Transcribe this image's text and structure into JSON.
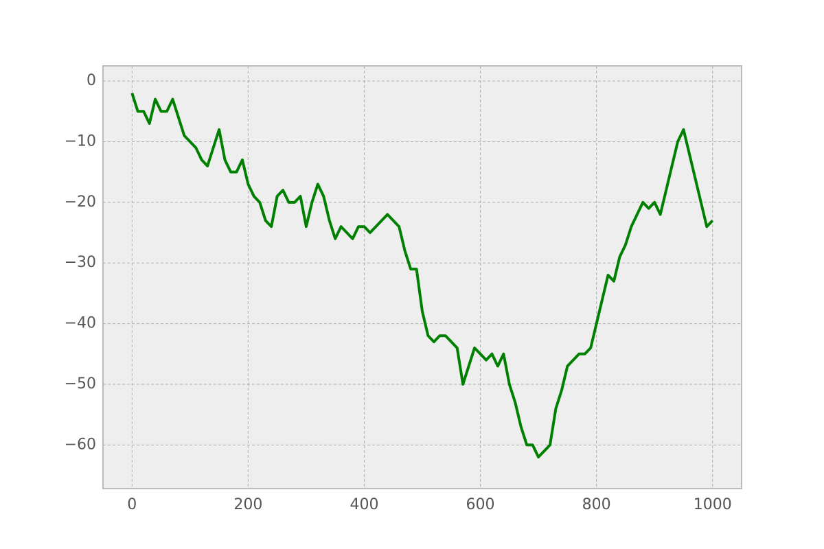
{
  "chart_data": {
    "type": "line",
    "x": [
      0,
      10,
      20,
      30,
      40,
      50,
      60,
      70,
      80,
      90,
      100,
      110,
      120,
      130,
      140,
      150,
      160,
      170,
      180,
      190,
      200,
      210,
      220,
      230,
      240,
      250,
      260,
      270,
      280,
      290,
      300,
      310,
      320,
      330,
      340,
      350,
      360,
      370,
      380,
      390,
      400,
      410,
      420,
      430,
      440,
      450,
      460,
      470,
      480,
      490,
      500,
      510,
      520,
      530,
      540,
      550,
      560,
      570,
      580,
      590,
      600,
      610,
      620,
      630,
      640,
      650,
      660,
      670,
      680,
      690,
      700,
      710,
      720,
      730,
      740,
      750,
      760,
      770,
      780,
      790,
      800,
      810,
      820,
      830,
      840,
      850,
      860,
      870,
      880,
      890,
      900,
      910,
      920,
      930,
      940,
      950,
      960,
      970,
      980,
      990,
      1000
    ],
    "values": [
      -2,
      -5,
      -5,
      -7,
      -3,
      -5,
      -5,
      -3,
      -6,
      -9,
      -10,
      -11,
      -13,
      -14,
      -11,
      -8,
      -13,
      -15,
      -15,
      -13,
      -17,
      -19,
      -20,
      -23,
      -24,
      -19,
      -18,
      -20,
      -20,
      -19,
      -24,
      -20,
      -17,
      -19,
      -23,
      -26,
      -24,
      -25,
      -26,
      -24,
      -24,
      -25,
      -24,
      -23,
      -22,
      -23,
      -24,
      -28,
      -31,
      -31,
      -38,
      -42,
      -43,
      -42,
      -42,
      -43,
      -44,
      -50,
      -47,
      -44,
      -45,
      -46,
      -45,
      -47,
      -45,
      -50,
      -53,
      -57,
      -60,
      -60,
      -62,
      -61,
      -60,
      -54,
      -51,
      -47,
      -46,
      -45,
      -45,
      -44,
      -40,
      -36,
      -32,
      -33,
      -29,
      -27,
      -24,
      -22,
      -20,
      -21,
      -20,
      -22,
      -18,
      -14,
      -10,
      -8,
      -12,
      -16,
      -20,
      -24,
      -23
    ],
    "color": "#008000",
    "xlim": [
      -50,
      1050
    ],
    "xticks": [
      0,
      200,
      400,
      600,
      800,
      1000
    ],
    "ylim": [
      -67.2,
      2.5
    ],
    "yticks": [
      0,
      {
        "value": -10,
        "label": "−10"
      },
      {
        "value": -20,
        "label": "−20"
      },
      {
        "value": -30,
        "label": "−30"
      },
      {
        "value": -40,
        "label": "−40"
      },
      {
        "value": -50,
        "label": "−50"
      },
      {
        "value": -60,
        "label": "−60"
      }
    ],
    "grid": true
  }
}
